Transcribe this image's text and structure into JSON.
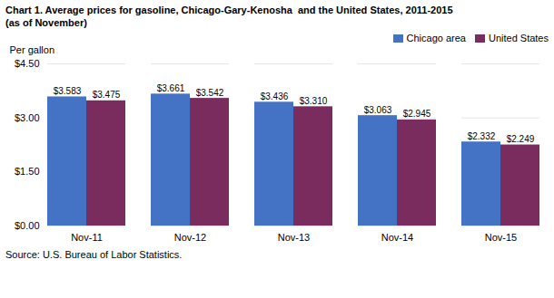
{
  "chart_data": {
    "type": "bar",
    "title": "Chart 1. Average prices for gasoline, Chicago-Gary-Kenosha  and the United States, 2011-2015",
    "subtitle": "(as of November)",
    "ylabel": "Per gallon",
    "source": "Source: U.S. Bureau of Labor Statistics.",
    "categories": [
      "Nov-11",
      "Nov-12",
      "Nov-13",
      "Nov-14",
      "Nov-15"
    ],
    "series": [
      {
        "name": "Chicago area",
        "color": "#4472C4",
        "values": [
          3.583,
          3.661,
          3.436,
          3.063,
          2.332
        ],
        "value_labels": [
          "$3.583",
          "$3.661",
          "$3.436",
          "$3.063",
          "$2.332"
        ]
      },
      {
        "name": "United States",
        "color": "#7B2C5E",
        "values": [
          3.475,
          3.542,
          3.31,
          2.945,
          2.249
        ],
        "value_labels": [
          "$3.475",
          "$3.542",
          "$3.310",
          "$2.945",
          "$2.249"
        ]
      }
    ],
    "ylim": [
      0.0,
      4.5
    ],
    "yticks": [
      {
        "value": 0.0,
        "label": "$0.00"
      },
      {
        "value": 1.5,
        "label": "$1.50"
      },
      {
        "value": 3.0,
        "label": "$3.00"
      },
      {
        "value": 4.5,
        "label": "$4.50"
      }
    ],
    "grid": true,
    "legend": "upper right",
    "data_labels": true
  }
}
